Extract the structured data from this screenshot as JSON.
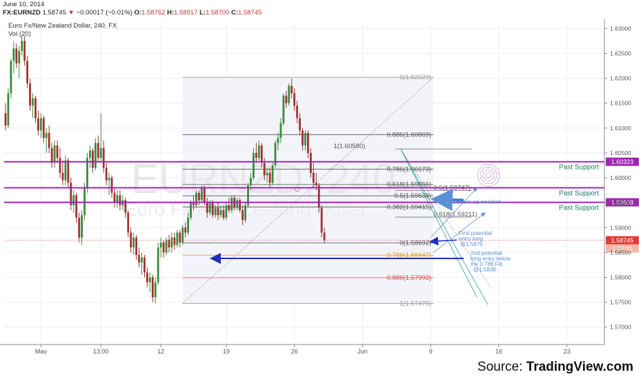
{
  "header": {
    "date": "June 10, 2014",
    "symbol": "FX:EURNZD",
    "last": "1.58745",
    "change": "−0.00017 (−0.01%)",
    "open_label": "O:",
    "open": "1.58762",
    "high_label": "H:",
    "high": "1.58917",
    "low_label": "L:",
    "low": "1.58700",
    "close_label": "C:",
    "close": "1.58745"
  },
  "chart_title": "Euro Fx/New Zealand Dollar, 240, FX",
  "volume_label": "Vol (20)",
  "watermark": {
    "symbol": "EURNZD, 240",
    "name": "Euro Fx/New Zealand Dollar"
  },
  "source": {
    "prefix": "Source: ",
    "brand": "TradingView.com"
  },
  "colors": {
    "up": "#3a8a3a",
    "down": "#a03030",
    "support": "#9c27b0",
    "arrow": "#1f2fbf",
    "fib": "#555555",
    "fib_orange": "#e69a1a",
    "fib_red": "#d84a4a",
    "price_tag": "#e53935"
  },
  "chart_data": {
    "type": "candlestick",
    "ylim": [
      1.5665,
      1.6313
    ],
    "y_ticks": [
      1.63,
      1.625,
      1.62,
      1.615,
      1.61,
      1.605,
      1.6,
      1.595,
      1.59,
      1.585,
      1.58,
      1.575,
      1.57
    ],
    "y_tick_labels": [
      "1.63000",
      "1.62500",
      "1.62000",
      "1.61500",
      "1.61000",
      "1.60500",
      "1.60000",
      "1.59500",
      "1.59000",
      "1.58500",
      "1.58000",
      "1.57500",
      "1.57000"
    ],
    "x_ticks": [
      {
        "label": "May",
        "bar": 13
      },
      {
        "label": "13:00",
        "bar": 35
      },
      {
        "label": "12",
        "bar": 57
      },
      {
        "label": "19",
        "bar": 81
      },
      {
        "label": "26",
        "bar": 106
      },
      {
        "label": "Jun",
        "bar": 131
      },
      {
        "label": "9",
        "bar": 156
      },
      {
        "label": "16",
        "bar": 181
      },
      {
        "label": "23",
        "bar": 206
      }
    ],
    "candles": [
      [
        1.613,
        1.615,
        1.6095,
        1.6105
      ],
      [
        1.6105,
        1.618,
        1.61,
        1.617
      ],
      [
        1.617,
        1.624,
        1.616,
        1.6235
      ],
      [
        1.6235,
        1.6275,
        1.621,
        1.626
      ],
      [
        1.626,
        1.627,
        1.622,
        1.623
      ],
      [
        1.623,
        1.6265,
        1.62,
        1.6255
      ],
      [
        1.6255,
        1.6285,
        1.6245,
        1.6275
      ],
      [
        1.6275,
        1.6285,
        1.6225,
        1.6235
      ],
      [
        1.6235,
        1.6245,
        1.618,
        1.619
      ],
      [
        1.619,
        1.62,
        1.6135,
        1.6145
      ],
      [
        1.6145,
        1.617,
        1.612,
        1.616
      ],
      [
        1.616,
        1.6165,
        1.611,
        1.612
      ],
      [
        1.612,
        1.6135,
        1.6085,
        1.6095
      ],
      [
        1.6095,
        1.613,
        1.608,
        1.612
      ],
      [
        1.612,
        1.6125,
        1.607,
        1.608
      ],
      [
        1.608,
        1.61,
        1.605,
        1.609
      ],
      [
        1.609,
        1.6105,
        1.605,
        1.606
      ],
      [
        1.606,
        1.607,
        1.602,
        1.603
      ],
      [
        1.603,
        1.6075,
        1.602,
        1.6065
      ],
      [
        1.6065,
        1.6075,
        1.603,
        1.604
      ],
      [
        1.604,
        1.606,
        1.6,
        1.601
      ],
      [
        1.601,
        1.6035,
        1.5985,
        1.5995
      ],
      [
        1.5995,
        1.6045,
        1.5985,
        1.6035
      ],
      [
        1.6035,
        1.604,
        1.598,
        1.599
      ],
      [
        1.599,
        1.6,
        1.5935,
        1.5945
      ],
      [
        1.5945,
        1.5975,
        1.593,
        1.5965
      ],
      [
        1.5965,
        1.597,
        1.591,
        1.592
      ],
      [
        1.592,
        1.593,
        1.587,
        1.588
      ],
      [
        1.588,
        1.5935,
        1.5865,
        1.5925
      ],
      [
        1.5925,
        1.599,
        1.5915,
        1.598
      ],
      [
        1.598,
        1.605,
        1.597,
        1.604
      ],
      [
        1.604,
        1.6065,
        1.602,
        1.6055
      ],
      [
        1.6055,
        1.606,
        1.601,
        1.602
      ],
      [
        1.602,
        1.608,
        1.6015,
        1.607
      ],
      [
        1.607,
        1.6085,
        1.603,
        1.604
      ],
      [
        1.604,
        1.613,
        1.603,
        1.606
      ],
      [
        1.606,
        1.6075,
        1.601,
        1.602
      ],
      [
        1.602,
        1.603,
        1.5985,
        1.5995
      ],
      [
        1.5995,
        1.601,
        1.5965,
        1.6
      ],
      [
        1.6,
        1.6005,
        1.596,
        1.597
      ],
      [
        1.597,
        1.598,
        1.594,
        1.595
      ],
      [
        1.595,
        1.5975,
        1.594,
        1.5965
      ],
      [
        1.5965,
        1.5975,
        1.5935,
        1.5945
      ],
      [
        1.5945,
        1.5965,
        1.5935,
        1.5955
      ],
      [
        1.5955,
        1.596,
        1.592,
        1.593
      ],
      [
        1.593,
        1.5935,
        1.588,
        1.589
      ],
      [
        1.589,
        1.59,
        1.585,
        1.586
      ],
      [
        1.586,
        1.589,
        1.5845,
        1.588
      ],
      [
        1.588,
        1.5885,
        1.5835,
        1.5845
      ],
      [
        1.5845,
        1.586,
        1.582,
        1.583
      ],
      [
        1.583,
        1.585,
        1.5805,
        1.584
      ],
      [
        1.584,
        1.5845,
        1.58,
        1.581
      ],
      [
        1.581,
        1.582,
        1.578,
        1.579
      ],
      [
        1.579,
        1.581,
        1.577,
        1.58
      ],
      [
        1.58,
        1.5805,
        1.575,
        1.576
      ],
      [
        1.576,
        1.58,
        1.5748,
        1.579
      ],
      [
        1.579,
        1.587,
        1.5785,
        1.586
      ],
      [
        1.586,
        1.588,
        1.584,
        1.587
      ],
      [
        1.587,
        1.5875,
        1.584,
        1.585
      ],
      [
        1.585,
        1.588,
        1.5845,
        1.5875
      ],
      [
        1.5875,
        1.5885,
        1.585,
        1.586
      ],
      [
        1.586,
        1.589,
        1.585,
        1.588
      ],
      [
        1.588,
        1.589,
        1.5855,
        1.5865
      ],
      [
        1.5865,
        1.5895,
        1.586,
        1.589
      ],
      [
        1.589,
        1.5895,
        1.586,
        1.587
      ],
      [
        1.587,
        1.5905,
        1.5865,
        1.59
      ],
      [
        1.59,
        1.591,
        1.588,
        1.589
      ],
      [
        1.589,
        1.593,
        1.5885,
        1.592
      ],
      [
        1.592,
        1.5955,
        1.5915,
        1.595
      ],
      [
        1.595,
        1.5965,
        1.5935,
        1.5945
      ],
      [
        1.5945,
        1.5975,
        1.594,
        1.597
      ],
      [
        1.597,
        1.5975,
        1.5945,
        1.5955
      ],
      [
        1.5955,
        1.5985,
        1.595,
        1.598
      ],
      [
        1.598,
        1.5985,
        1.5945,
        1.595
      ],
      [
        1.595,
        1.596,
        1.592,
        1.593
      ],
      [
        1.593,
        1.5955,
        1.5925,
        1.595
      ],
      [
        1.595,
        1.5955,
        1.592,
        1.5925
      ],
      [
        1.5925,
        1.5945,
        1.592,
        1.594
      ],
      [
        1.594,
        1.595,
        1.5915,
        1.5925
      ],
      [
        1.5925,
        1.5945,
        1.592,
        1.5935
      ],
      [
        1.5935,
        1.5945,
        1.5915,
        1.592
      ],
      [
        1.592,
        1.595,
        1.5915,
        1.5945
      ],
      [
        1.5945,
        1.596,
        1.593,
        1.5935
      ],
      [
        1.5935,
        1.5965,
        1.593,
        1.596
      ],
      [
        1.596,
        1.5965,
        1.5935,
        1.594
      ],
      [
        1.594,
        1.596,
        1.5935,
        1.5955
      ],
      [
        1.5955,
        1.596,
        1.593,
        1.5935
      ],
      [
        1.5935,
        1.5945,
        1.5905,
        1.5915
      ],
      [
        1.5915,
        1.595,
        1.591,
        1.5945
      ],
      [
        1.5945,
        1.599,
        1.594,
        1.5985
      ],
      [
        1.5985,
        1.601,
        1.5975,
        1.6
      ],
      [
        1.6,
        1.606,
        1.5995,
        1.605
      ],
      [
        1.605,
        1.607,
        1.603,
        1.604
      ],
      [
        1.604,
        1.6075,
        1.6035,
        1.6065
      ],
      [
        1.6065,
        1.607,
        1.602,
        1.603
      ],
      [
        1.603,
        1.604,
        1.5995,
        1.6005
      ],
      [
        1.6005,
        1.602,
        1.599,
        1.601
      ],
      [
        1.601,
        1.602,
        1.598,
        1.599
      ],
      [
        1.599,
        1.603,
        1.5985,
        1.6025
      ],
      [
        1.6025,
        1.6075,
        1.602,
        1.607
      ],
      [
        1.607,
        1.609,
        1.6055,
        1.608
      ],
      [
        1.608,
        1.612,
        1.607,
        1.611
      ],
      [
        1.611,
        1.617,
        1.6105,
        1.6165
      ],
      [
        1.6165,
        1.6175,
        1.614,
        1.615
      ],
      [
        1.615,
        1.619,
        1.6145,
        1.6185
      ],
      [
        1.6185,
        1.62,
        1.616,
        1.617
      ],
      [
        1.617,
        1.618,
        1.6135,
        1.6145
      ],
      [
        1.6145,
        1.6155,
        1.611,
        1.612
      ],
      [
        1.612,
        1.613,
        1.6085,
        1.6095
      ],
      [
        1.6095,
        1.61,
        1.6055,
        1.6065
      ],
      [
        1.6065,
        1.6095,
        1.6055,
        1.609
      ],
      [
        1.609,
        1.6095,
        1.604,
        1.605
      ],
      [
        1.605,
        1.606,
        1.6,
        1.601
      ],
      [
        1.601,
        1.603,
        1.598,
        1.599
      ],
      [
        1.599,
        1.601,
        1.5975,
        1.5985
      ],
      [
        1.5985,
        1.599,
        1.593,
        1.594
      ],
      [
        1.594,
        1.5945,
        1.588,
        1.589
      ],
      [
        1.589,
        1.59,
        1.5868,
        1.5875
      ]
    ],
    "horizontal_lines": [
      {
        "price": 1.60323,
        "label": "Past Support",
        "tag": "1.60323",
        "style": "support"
      },
      {
        "price": 1.598,
        "label": "Past Support",
        "style": "support"
      },
      {
        "price": 1.59508,
        "label": "Past Support",
        "tag": "1.59508",
        "style": "support"
      },
      {
        "price": 1.58745,
        "tag": "1.58745",
        "style": "current"
      }
    ],
    "fib_retracement_1": {
      "levels": [
        {
          "label": "0(1.62020)",
          "price": 1.6202,
          "color": "#999999"
        },
        {
          "label": "0.886(1.60869)",
          "price": 1.60869,
          "color": "#555555"
        },
        {
          "label": "0.786(1.60173)",
          "price": 1.60173,
          "color": "#555555"
        },
        {
          "label": "0.618(1.59866)",
          "price": 1.59866,
          "color": "#555555"
        },
        {
          "label": "0.5(1.59638)",
          "price": 1.59638,
          "color": "#555555"
        },
        {
          "label": "0.382(1.59415)",
          "price": 1.59415,
          "color": "#555555"
        },
        {
          "label": "0(1.58692)",
          "price": 1.58692,
          "color": "#555555"
        },
        {
          "label": "0.786(1.58447)",
          "price": 1.58447,
          "color": "#e69a1a"
        },
        {
          "label": "0.886(1.57993)",
          "price": 1.57993,
          "color": "#d84a4a"
        },
        {
          "label": "1(1.57475)",
          "price": 1.57475,
          "color": "#999999"
        }
      ]
    },
    "fib_retracement_2": {
      "levels": [
        {
          "label": "1(1.60580)",
          "price": 1.6058
        },
        {
          "label": "0.5(1.59747)",
          "price": 1.59747
        },
        {
          "label": "0.618(1.59211)",
          "price": 1.59211
        }
      ]
    },
    "annotations": [
      {
        "text": "square up needed"
      },
      {
        "text": "First potential entry long @1.5875"
      },
      {
        "text": "2nd potential long entry below the 0.786 Fib @1.5838"
      }
    ],
    "countdown": "1:27:11"
  }
}
